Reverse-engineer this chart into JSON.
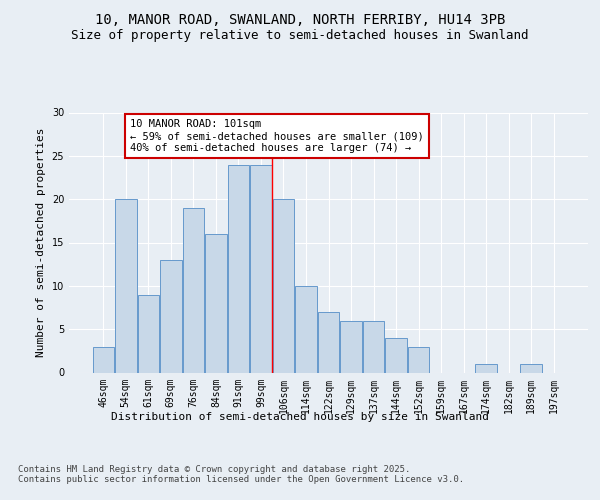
{
  "title": "10, MANOR ROAD, SWANLAND, NORTH FERRIBY, HU14 3PB",
  "subtitle": "Size of property relative to semi-detached houses in Swanland",
  "xlabel": "Distribution of semi-detached houses by size in Swanland",
  "ylabel": "Number of semi-detached properties",
  "categories": [
    "46sqm",
    "54sqm",
    "61sqm",
    "69sqm",
    "76sqm",
    "84sqm",
    "91sqm",
    "99sqm",
    "106sqm",
    "114sqm",
    "122sqm",
    "129sqm",
    "137sqm",
    "144sqm",
    "152sqm",
    "159sqm",
    "167sqm",
    "174sqm",
    "182sqm",
    "189sqm",
    "197sqm"
  ],
  "values": [
    3,
    20,
    9,
    13,
    19,
    16,
    24,
    24,
    20,
    10,
    7,
    6,
    6,
    4,
    3,
    0,
    0,
    1,
    0,
    1,
    0
  ],
  "bar_color": "#c8d8e8",
  "bar_edge_color": "#6699cc",
  "annotation_title": "10 MANOR ROAD: 101sqm",
  "annotation_line1": "← 59% of semi-detached houses are smaller (109)",
  "annotation_line2": "40% of semi-detached houses are larger (74) →",
  "annotation_box_color": "#ffffff",
  "annotation_box_edge_color": "#cc0000",
  "ylim": [
    0,
    30
  ],
  "yticks": [
    0,
    5,
    10,
    15,
    20,
    25,
    30
  ],
  "background_color": "#e8eef4",
  "plot_background_color": "#e8eef4",
  "grid_color": "#ffffff",
  "footer": "Contains HM Land Registry data © Crown copyright and database right 2025.\nContains public sector information licensed under the Open Government Licence v3.0.",
  "title_fontsize": 10,
  "subtitle_fontsize": 9,
  "axis_label_fontsize": 8,
  "tick_fontsize": 7,
  "annotation_fontsize": 7.5,
  "footer_fontsize": 6.5,
  "red_line_x": 7.5
}
